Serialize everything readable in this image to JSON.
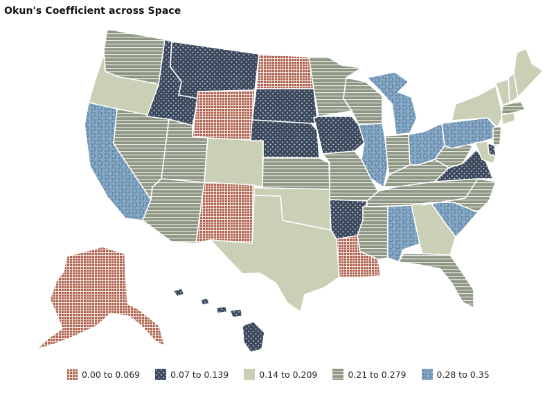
{
  "title": "Okun's Coefficient across Space",
  "legend": [
    {
      "label": "0.00 to 0.069",
      "pattern": "grid",
      "color": "#b0614f"
    },
    {
      "label": "0.07 to 0.139",
      "pattern": "dots",
      "color": "#3d4a5e"
    },
    {
      "label": "0.14 to 0.209",
      "pattern": "solid",
      "color": "#c9d0b6"
    },
    {
      "label": "0.21 to 0.279",
      "pattern": "hlines",
      "color": "#8e9684"
    },
    {
      "label": "0.28 to 0.35",
      "pattern": "dashes",
      "color": "#85a8c6"
    }
  ],
  "states": {
    "WA": 3,
    "OR": 2,
    "CA": 4,
    "NV": 3,
    "ID": 1,
    "MT": 1,
    "WY": 0,
    "UT": 3,
    "AZ": 3,
    "CO": 2,
    "NM": 0,
    "ND": 0,
    "SD": 1,
    "NE": 1,
    "KS": 3,
    "OK": 2,
    "TX": 2,
    "MN": 3,
    "IA": 1,
    "MO": 3,
    "AR": 1,
    "LA": 0,
    "WI": 3,
    "IL": 4,
    "MI": 4,
    "IN": 3,
    "OH": 4,
    "KY": 3,
    "TN": 3,
    "MS": 3,
    "AL": 4,
    "GA": 2,
    "FL": 3,
    "SC": 4,
    "NC": 3,
    "VA": 1,
    "WV": 3,
    "PA": 4,
    "NY": 2,
    "ME": 2,
    "VT": 2,
    "NH": 2,
    "MA": 3,
    "CT": 2,
    "NJ": 3,
    "DE": 1,
    "MD": 2,
    "AK": 0,
    "HI": 1
  }
}
